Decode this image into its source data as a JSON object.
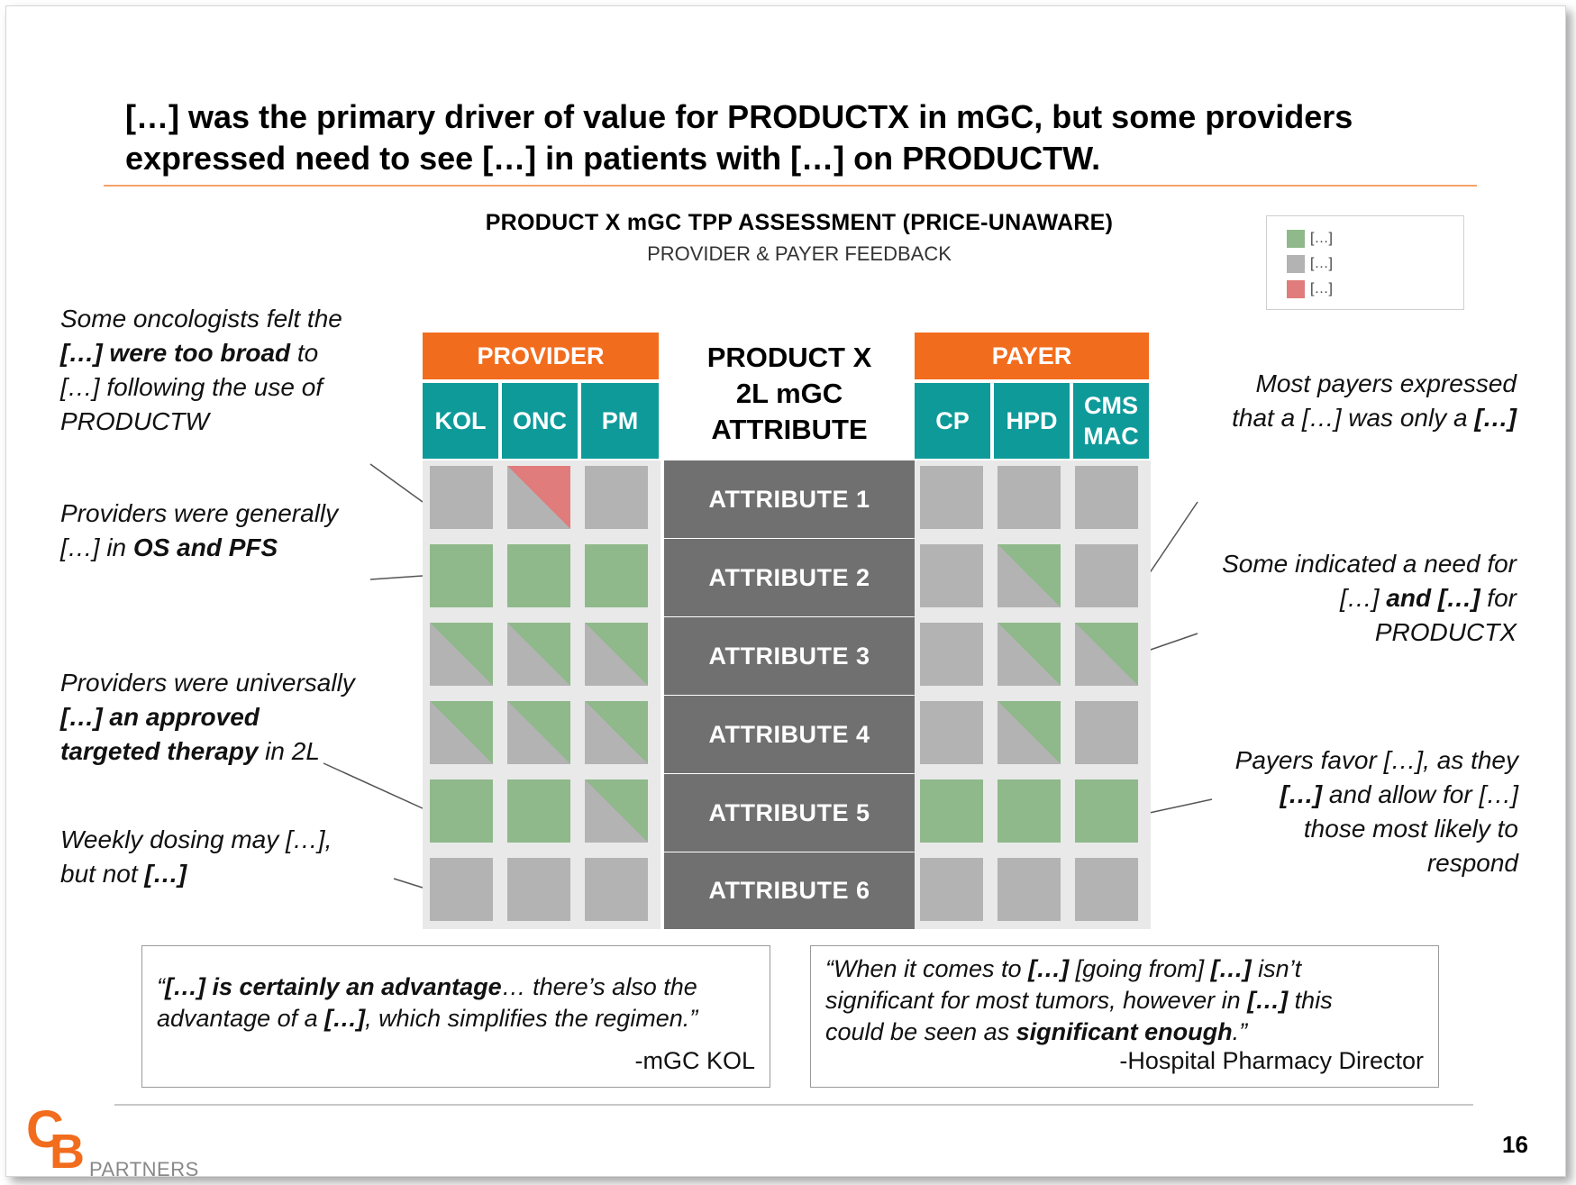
{
  "headline": {
    "line1": "[…] was the primary driver of value for PRODUCTX in mGC, but some providers",
    "line2": "expressed need to see […] in patients with […] on PRODUCTW."
  },
  "chart": {
    "title": "PRODUCT X mGC TPP ASSESSMENT (PRICE-UNAWARE)",
    "subtitle": "PROVIDER & PAYER FEEDBACK"
  },
  "colors": {
    "green": "#8fb98a",
    "gray": "#b3b3b3",
    "red": "#e07c7c",
    "orange": "#f26c1d",
    "teal": "#0f9a9a",
    "attr": "#707070"
  },
  "legend": [
    {
      "label": "[…]",
      "color": "#8fb98a"
    },
    {
      "label": "[…]",
      "color": "#b3b3b3"
    },
    {
      "label": "[…]",
      "color": "#e07c7c"
    }
  ],
  "matrix": {
    "provider_label": "PROVIDER",
    "payer_label": "PAYER",
    "attribute_header": {
      "line1": "PRODUCT X",
      "line2": "2L mGC",
      "line3": "ATTRIBUTE"
    },
    "provider_columns": [
      "KOL",
      "ONC",
      "PM"
    ],
    "payer_columns": [
      {
        "line1": "CP"
      },
      {
        "line1": "HPD"
      },
      {
        "line1": "CMS",
        "line2": "MAC"
      }
    ],
    "rows": [
      {
        "attribute": "ATTRIBUTE 1",
        "provider": [
          "gray",
          "red-split",
          "gray"
        ],
        "payer": [
          "gray",
          "gray",
          "gray"
        ]
      },
      {
        "attribute": "ATTRIBUTE 2",
        "provider": [
          "green",
          "green",
          "green"
        ],
        "payer": [
          "gray",
          "green-split",
          "gray"
        ]
      },
      {
        "attribute": "ATTRIBUTE 3",
        "provider": [
          "green-split",
          "green-split",
          "green-split"
        ],
        "payer": [
          "gray",
          "green-split",
          "green-split"
        ]
      },
      {
        "attribute": "ATTRIBUTE 4",
        "provider": [
          "green-split",
          "green-split",
          "green-split"
        ],
        "payer": [
          "gray",
          "green-split",
          "gray"
        ]
      },
      {
        "attribute": "ATTRIBUTE 5",
        "provider": [
          "green",
          "green",
          "green-split"
        ],
        "payer": [
          "green",
          "green",
          "green"
        ]
      },
      {
        "attribute": "ATTRIBUTE 6",
        "provider": [
          "gray",
          "gray",
          "gray"
        ],
        "payer": [
          "gray",
          "gray",
          "gray"
        ]
      }
    ]
  },
  "left_notes": [
    {
      "pre": "Some oncologists felt the",
      "bold": "[…] were too broad",
      "post": " to",
      "l3": "[…] following the use of",
      "l4": "PRODUCTW"
    },
    {
      "pre": "Providers were generally",
      "l2pre": "[…] in ",
      "bold": "OS and PFS"
    },
    {
      "pre": "Providers were universally",
      "bold": "[…] an approved",
      "bold2": "targeted therapy",
      "post": " in 2L"
    },
    {
      "pre": "Weekly dosing may […],",
      "l2pre": "but not ",
      "bold": "[…]"
    }
  ],
  "right_notes": [
    {
      "l1": "Most payers expressed",
      "l2pre": "that a […] was only a ",
      "bold": "[…]"
    },
    {
      "l1": "Some indicated a need for",
      "l2pre": "[…] ",
      "bold": "and […]",
      "l2post": " for",
      "l3": "PRODUCTX"
    },
    {
      "l1": "Payers favor […], as they",
      "bold": "[…]",
      "l2post": " and allow for […]",
      "l3": "those most likely to",
      "l4": "respond"
    }
  ],
  "quotes": [
    {
      "open": "“",
      "bold1": "[…] is certainly an advantage",
      "mid1": "… there’s also the",
      "l2pre": "advantage of a ",
      "bold2": "[…]",
      "l2post": ", which simplifies the regimen.”",
      "attribution": "-mGC KOL"
    },
    {
      "l1pre": "“When it comes to ",
      "bold1": "[…]",
      "l1mid": " [going from] ",
      "bold2": "[…]",
      "l1post": " isn’t",
      "l2pre": "significant for most tumors, however in ",
      "bold3": "[…]",
      "l2post": " this",
      "l3pre": "could be seen as ",
      "bold4": "significant enough",
      "l3post": ".”",
      "attribution": "-Hospital Pharmacy Director"
    }
  ],
  "footer": {
    "logo_c": "C",
    "logo_b": "B",
    "logo_text": "PARTNERS",
    "page_number": "16"
  }
}
